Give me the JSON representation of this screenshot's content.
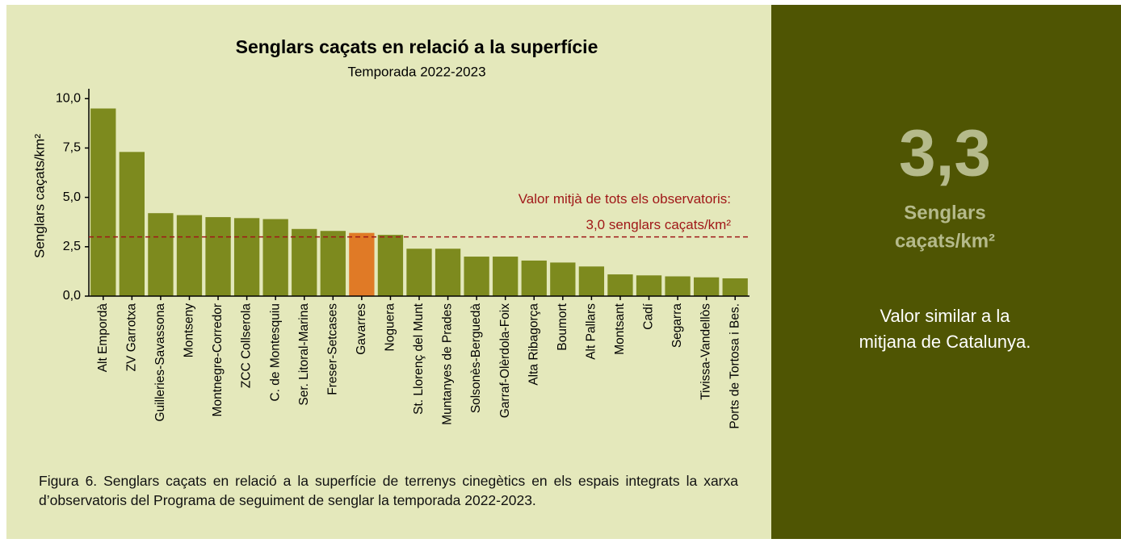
{
  "chart_data": {
    "type": "bar",
    "title": "Senglars caçats en relació a la superfície",
    "subtitle": "Temporada 2022-2023",
    "y_label": "Senglars caçats/km²",
    "categories": [
      "Alt Empordà",
      "ZV Garrotxa",
      "Guilleries-Savassona",
      "Montseny",
      "Montnegre-Corredor",
      "ZCC Collserola",
      "C. de Montesquiu",
      "Ser. Litoral-Marina",
      "Freser-Setcases",
      "Gavarres",
      "Noguera",
      "St. Llorenç del Munt",
      "Muntanyes de Prades",
      "Solsonès-Berguedà",
      "Garraf-Olèrdola-Foix",
      "Alta Ribagorça",
      "Boumort",
      "Alt Pallars",
      "Montsant",
      "Cadí",
      "Segarra",
      "Tivissa-Vandellòs",
      "Ports de Tortosa i Bes."
    ],
    "values": [
      9.5,
      7.3,
      4.2,
      4.1,
      4.0,
      3.95,
      3.9,
      3.4,
      3.3,
      3.2,
      3.1,
      2.4,
      2.4,
      2.0,
      2.0,
      1.8,
      1.7,
      1.5,
      1.1,
      1.05,
      1.0,
      0.95,
      0.9
    ],
    "colors": [
      "#7d8a1e",
      "#7d8a1e",
      "#7d8a1e",
      "#7d8a1e",
      "#7d8a1e",
      "#7d8a1e",
      "#7d8a1e",
      "#7d8a1e",
      "#7d8a1e",
      "#e07a26",
      "#7d8a1e",
      "#7d8a1e",
      "#7d8a1e",
      "#7d8a1e",
      "#7d8a1e",
      "#7d8a1e",
      "#7d8a1e",
      "#7d8a1e",
      "#7d8a1e",
      "#7d8a1e",
      "#7d8a1e",
      "#7d8a1e",
      "#7d8a1e"
    ],
    "ylim": [
      0,
      10.5
    ],
    "yticks": [
      {
        "value": 0,
        "label": "0,0"
      },
      {
        "value": 2.5,
        "label": "2,5"
      },
      {
        "value": 5,
        "label": "5,0"
      },
      {
        "value": 7.5,
        "label": "7,5"
      },
      {
        "value": 10,
        "label": "10,0"
      }
    ],
    "reference_line": {
      "value": 3.0,
      "color": "#a01818",
      "label_lines": [
        "Valor mitjà de tots els observatoris:",
        "3,0 senglars caçats/km²"
      ]
    }
  },
  "caption": "Figura 6. Senglars caçats en relació a la superfície de terrenys cinegètics en els espais integrats la xarxa d’observatoris del Programa de seguiment de senglar la temporada 2022-2023.",
  "side_panel": {
    "big_value": "3,3",
    "unit_lines": [
      "Senglars",
      "caçats/km²"
    ],
    "note_lines": [
      "Valor similar a la",
      "mitjana de Catalunya."
    ]
  }
}
